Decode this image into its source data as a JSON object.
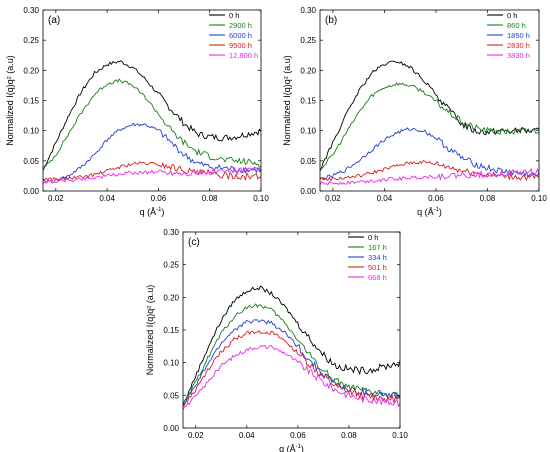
{
  "figure": {
    "superscript_minus_one": "-1"
  },
  "colors": {
    "black": "#000000",
    "green": "#1a7f1a",
    "blue": "#1f3fd6",
    "red": "#d61f1f",
    "magenta": "#e62ee6"
  },
  "chart_data": [
    {
      "panel_label": "(a)",
      "type": "line",
      "xlabel": "q (Å",
      "ylabel": "Normalized I(q)q² (a.u)",
      "xlim": [
        0.015,
        0.1
      ],
      "ylim": [
        0,
        0.3
      ],
      "xticks": [
        "0.02",
        "0.04",
        "0.06",
        "0.08",
        "0.10"
      ],
      "yticks": [
        "0.00",
        "0.05",
        "0.10",
        "0.15",
        "0.20",
        "0.25",
        "0.30"
      ],
      "legend_position": "top-right",
      "series": [
        {
          "name": "0 h",
          "color": "black",
          "x": [
            0.015,
            0.02,
            0.025,
            0.03,
            0.035,
            0.04,
            0.045,
            0.05,
            0.055,
            0.06,
            0.065,
            0.07,
            0.075,
            0.08,
            0.085,
            0.09,
            0.095,
            0.1
          ],
          "y": [
            0.035,
            0.08,
            0.125,
            0.165,
            0.195,
            0.21,
            0.215,
            0.205,
            0.185,
            0.16,
            0.135,
            0.112,
            0.095,
            0.09,
            0.088,
            0.09,
            0.095,
            0.1
          ]
        },
        {
          "name": "2900 h",
          "color": "green",
          "x": [
            0.015,
            0.02,
            0.025,
            0.03,
            0.035,
            0.04,
            0.045,
            0.05,
            0.055,
            0.06,
            0.065,
            0.07,
            0.075,
            0.08,
            0.085,
            0.09,
            0.095,
            0.1
          ],
          "y": [
            0.035,
            0.06,
            0.095,
            0.13,
            0.16,
            0.178,
            0.183,
            0.175,
            0.155,
            0.128,
            0.1,
            0.08,
            0.065,
            0.058,
            0.052,
            0.05,
            0.048,
            0.045
          ]
        },
        {
          "name": "6000 h",
          "color": "blue",
          "x": [
            0.015,
            0.02,
            0.025,
            0.03,
            0.035,
            0.04,
            0.045,
            0.05,
            0.055,
            0.06,
            0.065,
            0.07,
            0.075,
            0.08,
            0.085,
            0.09,
            0.095,
            0.1
          ],
          "y": [
            0.015,
            0.017,
            0.025,
            0.04,
            0.06,
            0.085,
            0.102,
            0.11,
            0.11,
            0.1,
            0.08,
            0.06,
            0.046,
            0.04,
            0.038,
            0.036,
            0.035,
            0.035
          ]
        },
        {
          "name": "9500 h",
          "color": "red",
          "x": [
            0.015,
            0.02,
            0.025,
            0.03,
            0.035,
            0.04,
            0.045,
            0.05,
            0.055,
            0.06,
            0.065,
            0.07,
            0.075,
            0.08,
            0.085,
            0.09,
            0.095,
            0.1
          ],
          "y": [
            0.02,
            0.02,
            0.021,
            0.023,
            0.027,
            0.033,
            0.04,
            0.045,
            0.046,
            0.044,
            0.04,
            0.035,
            0.03,
            0.028,
            0.026,
            0.025,
            0.024,
            0.023
          ]
        },
        {
          "name": "12,800 h",
          "color": "magenta",
          "x": [
            0.015,
            0.02,
            0.025,
            0.03,
            0.035,
            0.04,
            0.045,
            0.05,
            0.055,
            0.06,
            0.065,
            0.07,
            0.075,
            0.08,
            0.085,
            0.09,
            0.095,
            0.1
          ],
          "y": [
            0.015,
            0.016,
            0.018,
            0.02,
            0.022,
            0.025,
            0.028,
            0.03,
            0.031,
            0.032,
            0.031,
            0.03,
            0.03,
            0.031,
            0.032,
            0.033,
            0.034,
            0.035
          ]
        }
      ]
    },
    {
      "panel_label": "(b)",
      "type": "line",
      "xlabel": "q (Å",
      "ylabel": "Normalized I(q)q² (a.u)",
      "xlim": [
        0.015,
        0.1
      ],
      "ylim": [
        0,
        0.3
      ],
      "xticks": [
        "0.02",
        "0.04",
        "0.06",
        "0.08",
        "0.10"
      ],
      "yticks": [
        "0.00",
        "0.05",
        "0.10",
        "0.15",
        "0.20",
        "0.25",
        "0.30"
      ],
      "legend_position": "top-right",
      "series": [
        {
          "name": "0 h",
          "color": "black",
          "x": [
            0.015,
            0.02,
            0.025,
            0.03,
            0.035,
            0.04,
            0.045,
            0.05,
            0.055,
            0.06,
            0.065,
            0.07,
            0.075,
            0.08,
            0.085,
            0.09,
            0.095,
            0.1
          ],
          "y": [
            0.035,
            0.08,
            0.125,
            0.165,
            0.195,
            0.21,
            0.215,
            0.205,
            0.185,
            0.16,
            0.135,
            0.112,
            0.1,
            0.098,
            0.1,
            0.1,
            0.1,
            0.1
          ]
        },
        {
          "name": "860 h",
          "color": "green",
          "x": [
            0.015,
            0.02,
            0.025,
            0.03,
            0.035,
            0.04,
            0.045,
            0.05,
            0.055,
            0.06,
            0.065,
            0.07,
            0.075,
            0.08,
            0.085,
            0.09,
            0.095,
            0.1
          ],
          "y": [
            0.035,
            0.06,
            0.095,
            0.13,
            0.158,
            0.172,
            0.178,
            0.175,
            0.165,
            0.148,
            0.13,
            0.115,
            0.105,
            0.1,
            0.098,
            0.098,
            0.1,
            0.1
          ]
        },
        {
          "name": "1850 h",
          "color": "blue",
          "x": [
            0.015,
            0.02,
            0.025,
            0.03,
            0.035,
            0.04,
            0.045,
            0.05,
            0.055,
            0.06,
            0.065,
            0.07,
            0.075,
            0.08,
            0.085,
            0.09,
            0.095,
            0.1
          ],
          "y": [
            0.02,
            0.025,
            0.035,
            0.05,
            0.068,
            0.085,
            0.097,
            0.103,
            0.1,
            0.088,
            0.07,
            0.055,
            0.045,
            0.038,
            0.033,
            0.03,
            0.028,
            0.026
          ]
        },
        {
          "name": "2830 h",
          "color": "red",
          "x": [
            0.015,
            0.02,
            0.025,
            0.03,
            0.035,
            0.04,
            0.045,
            0.05,
            0.055,
            0.06,
            0.065,
            0.07,
            0.075,
            0.08,
            0.085,
            0.09,
            0.095,
            0.1
          ],
          "y": [
            0.02,
            0.02,
            0.022,
            0.025,
            0.03,
            0.036,
            0.042,
            0.047,
            0.048,
            0.045,
            0.04,
            0.034,
            0.03,
            0.027,
            0.025,
            0.024,
            0.023,
            0.022
          ]
        },
        {
          "name": "3830 h",
          "color": "magenta",
          "x": [
            0.015,
            0.02,
            0.025,
            0.03,
            0.035,
            0.04,
            0.045,
            0.05,
            0.055,
            0.06,
            0.065,
            0.07,
            0.075,
            0.08,
            0.085,
            0.09,
            0.095,
            0.1
          ],
          "y": [
            0.012,
            0.013,
            0.014,
            0.015,
            0.017,
            0.019,
            0.02,
            0.022,
            0.023,
            0.024,
            0.025,
            0.026,
            0.027,
            0.028,
            0.029,
            0.03,
            0.031,
            0.032
          ]
        }
      ]
    },
    {
      "panel_label": "(c)",
      "type": "line",
      "xlabel": "q (Å",
      "ylabel": "Normalized I(q)q² (a.u)",
      "xlim": [
        0.015,
        0.1
      ],
      "ylim": [
        0,
        0.3
      ],
      "xticks": [
        "0.02",
        "0.04",
        "0.06",
        "0.08",
        "0.10"
      ],
      "yticks": [
        "0.00",
        "0.05",
        "0.10",
        "0.15",
        "0.20",
        "0.25",
        "0.30"
      ],
      "legend_position": "top-right",
      "series": [
        {
          "name": "0 h",
          "color": "black",
          "x": [
            0.015,
            0.02,
            0.025,
            0.03,
            0.035,
            0.04,
            0.045,
            0.05,
            0.055,
            0.06,
            0.065,
            0.07,
            0.075,
            0.08,
            0.085,
            0.09,
            0.095,
            0.1
          ],
          "y": [
            0.035,
            0.08,
            0.125,
            0.165,
            0.195,
            0.21,
            0.215,
            0.205,
            0.185,
            0.16,
            0.135,
            0.112,
            0.095,
            0.09,
            0.088,
            0.09,
            0.095,
            0.1
          ]
        },
        {
          "name": "167 h",
          "color": "green",
          "x": [
            0.015,
            0.02,
            0.025,
            0.03,
            0.035,
            0.04,
            0.045,
            0.05,
            0.055,
            0.06,
            0.065,
            0.07,
            0.075,
            0.08,
            0.085,
            0.09,
            0.095,
            0.1
          ],
          "y": [
            0.035,
            0.07,
            0.11,
            0.145,
            0.17,
            0.185,
            0.188,
            0.18,
            0.16,
            0.135,
            0.11,
            0.088,
            0.072,
            0.062,
            0.057,
            0.054,
            0.052,
            0.05
          ]
        },
        {
          "name": "334 h",
          "color": "blue",
          "x": [
            0.015,
            0.02,
            0.025,
            0.03,
            0.035,
            0.04,
            0.045,
            0.05,
            0.055,
            0.06,
            0.065,
            0.07,
            0.075,
            0.08,
            0.085,
            0.09,
            0.095,
            0.1
          ],
          "y": [
            0.035,
            0.065,
            0.1,
            0.13,
            0.15,
            0.162,
            0.165,
            0.16,
            0.145,
            0.125,
            0.102,
            0.082,
            0.067,
            0.058,
            0.054,
            0.052,
            0.05,
            0.049
          ]
        },
        {
          "name": "501 h",
          "color": "red",
          "x": [
            0.015,
            0.02,
            0.025,
            0.03,
            0.035,
            0.04,
            0.045,
            0.05,
            0.055,
            0.06,
            0.065,
            0.07,
            0.075,
            0.08,
            0.085,
            0.09,
            0.095,
            0.1
          ],
          "y": [
            0.033,
            0.058,
            0.09,
            0.117,
            0.135,
            0.145,
            0.148,
            0.145,
            0.133,
            0.115,
            0.095,
            0.078,
            0.063,
            0.055,
            0.05,
            0.047,
            0.045,
            0.043
          ]
        },
        {
          "name": "668 h",
          "color": "magenta",
          "x": [
            0.015,
            0.02,
            0.025,
            0.03,
            0.035,
            0.04,
            0.045,
            0.05,
            0.055,
            0.06,
            0.065,
            0.07,
            0.075,
            0.08,
            0.085,
            0.09,
            0.095,
            0.1
          ],
          "y": [
            0.03,
            0.048,
            0.072,
            0.095,
            0.11,
            0.12,
            0.125,
            0.123,
            0.115,
            0.1,
            0.085,
            0.07,
            0.058,
            0.05,
            0.045,
            0.042,
            0.04,
            0.038
          ]
        }
      ]
    }
  ]
}
